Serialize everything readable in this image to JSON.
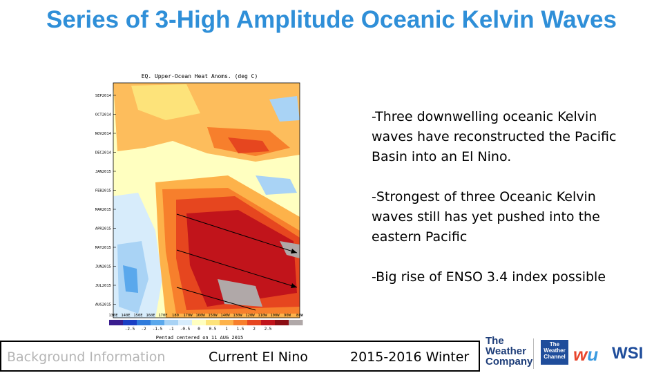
{
  "slide": {
    "title": "Series of 3-High Amplitude Oceanic Kelvin Waves",
    "bullets": [
      "-Three downwelling oceanic Kelvin waves have reconstructed the Pacific Basin into an El Nino.",
      "-Strongest of three Oceanic Kelvin waves still has yet pushed into the eastern Pacific",
      "-Big rise of ENSO 3.4 index possible"
    ]
  },
  "figure": {
    "title": "EQ. Upper-Ocean Heat Anoms. (deg C)",
    "caption": "Pentad centered on 11 AUG 2015",
    "y_labels": [
      "SEP2014",
      "OCT2014",
      "NOV2014",
      "DEC2014",
      "JAN2015",
      "FEB2015",
      "MAR2015",
      "APR2015",
      "MAY2015",
      "JUN2015",
      "JUL2015",
      "AUG2015"
    ],
    "x_labels": [
      "130E",
      "140E",
      "150E",
      "160E",
      "170E",
      "180",
      "170W",
      "160W",
      "150W",
      "140W",
      "130W",
      "120W",
      "110W",
      "100W",
      "90W",
      "80W"
    ],
    "colorbar_ticks": [
      "-2.5",
      "-2",
      "-1.5",
      "-1",
      "-0.5",
      "0",
      "0.5",
      "1",
      "1.5",
      "2",
      "2.5"
    ],
    "colorbar_colors": [
      "#3a1d8f",
      "#1a3fc4",
      "#2f7bdc",
      "#5aa8ec",
      "#a9d3f5",
      "#d7ecfb",
      "#ffffc0",
      "#fde37a",
      "#fdb24a",
      "#f77f2c",
      "#e6461f",
      "#c1141b",
      "#8b0e14",
      "#b0a8a8"
    ]
  },
  "footer": {
    "background": "Background Information",
    "current": "Current El Nino",
    "season": "2015-2016  Winter"
  },
  "logos": {
    "twc_line1": "The",
    "twc_line2": "Weather",
    "twc_line3": "Company",
    "box_line1": "The",
    "box_line2": "Weather",
    "box_line3": "Channel",
    "wsi": "WSI"
  }
}
